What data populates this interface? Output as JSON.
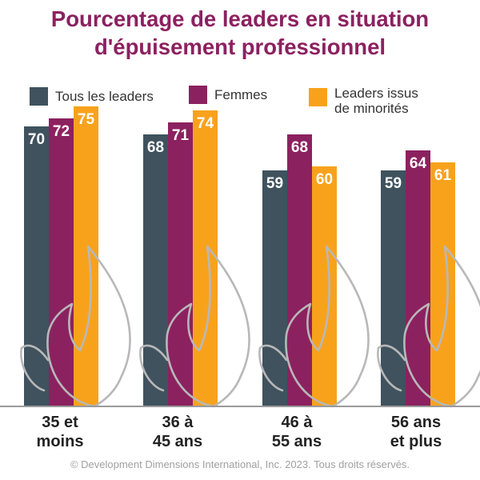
{
  "title": [
    "Pourcentage de leaders en situation",
    "d'épuisement professionnel"
  ],
  "footer": "© Development Dimensions International, Inc. 2023. Tous droits réservés.",
  "colors": {
    "title": "#8c2160",
    "series": [
      "#3f525e",
      "#8c2160",
      "#f8a21c"
    ],
    "flame": "#b8b8b8",
    "axis": "#9a9a9a"
  },
  "icons": {
    "background": "flame-icon"
  },
  "chart_data": {
    "type": "bar",
    "title": "Pourcentage de leaders en situation d'épuisement professionnel",
    "categories": [
      "35 et\nmoins",
      "36 à\n45 ans",
      "46 à\n55 ans",
      "56 ans\net plus"
    ],
    "series": [
      {
        "name": "Tous les leaders",
        "values": [
          70,
          68,
          59,
          59
        ]
      },
      {
        "name": "Femmes",
        "values": [
          72,
          71,
          68,
          64
        ]
      },
      {
        "name": "Leaders issus\nde minorités",
        "values": [
          75,
          74,
          60,
          61
        ]
      }
    ],
    "xlabel": "",
    "ylabel": "",
    "ylim": [
      0,
      100
    ],
    "grid": false,
    "legend": "top",
    "data_labels": true
  }
}
